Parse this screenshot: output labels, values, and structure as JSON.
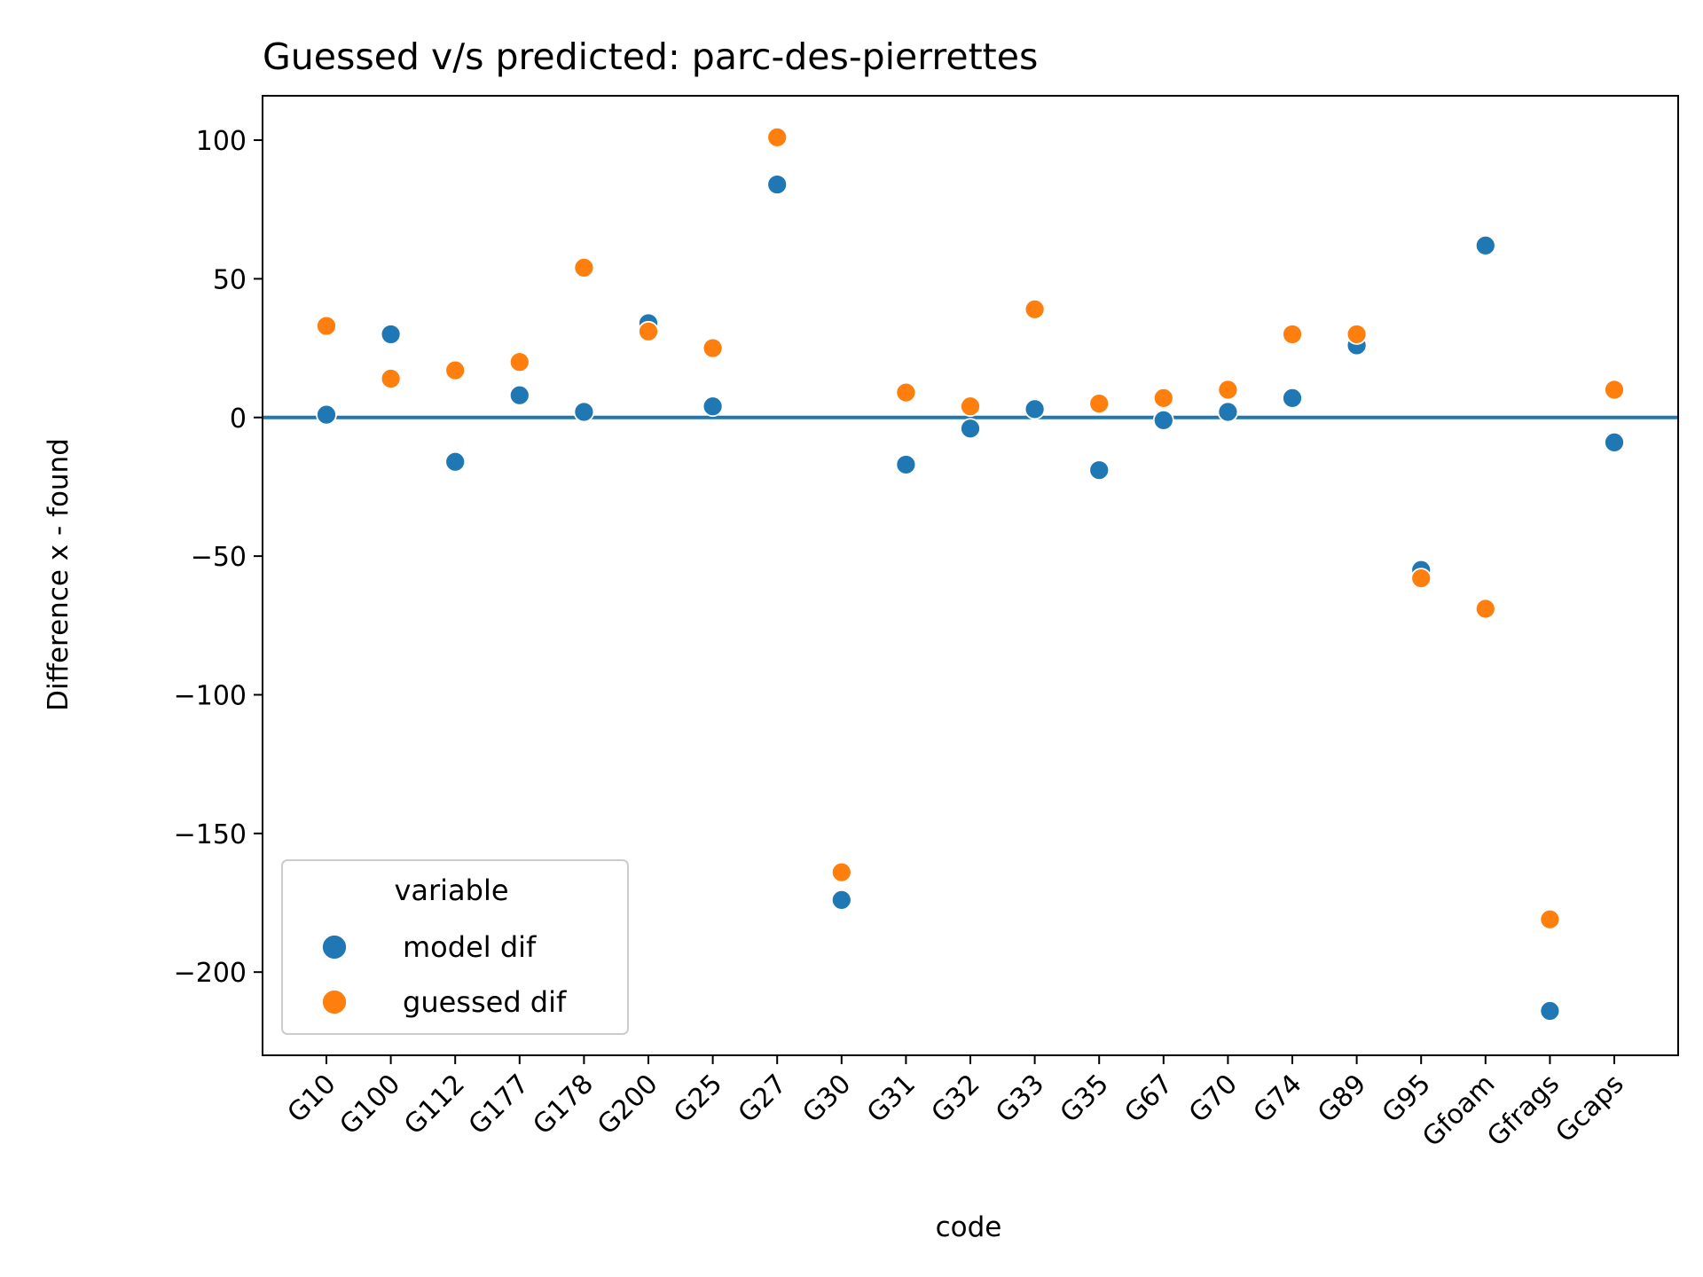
{
  "chart_data": {
    "type": "scatter",
    "title": "Guessed v/s predicted: parc-des-pierrettes",
    "xlabel": "code",
    "ylabel": "Difference x - found",
    "categories": [
      "G10",
      "G100",
      "G112",
      "G177",
      "G178",
      "G200",
      "G25",
      "G27",
      "G30",
      "G31",
      "G32",
      "G33",
      "G35",
      "G67",
      "G70",
      "G74",
      "G89",
      "G95",
      "Gfoam",
      "Gfrags",
      "Gcaps"
    ],
    "ylim": [
      -230,
      116
    ],
    "yticks": [
      100,
      50,
      0,
      -50,
      -100,
      -150,
      -200
    ],
    "ytick_labels": [
      "100",
      "50",
      "0",
      "−50",
      "−100",
      "−150",
      "−200"
    ],
    "reference_line": {
      "y": 0,
      "color": "#1f77b4"
    },
    "grid": false,
    "legend": {
      "title": "variable",
      "position": "lower-left",
      "entries": [
        {
          "label": "model dif",
          "color": "#1f77b4"
        },
        {
          "label": "guessed dif",
          "color": "#ff7f0e"
        }
      ]
    },
    "series": [
      {
        "name": "model dif",
        "color": "#1f77b4",
        "values": [
          1,
          30,
          -16,
          8,
          2,
          34,
          4,
          84,
          -174,
          -17,
          -4,
          3,
          -19,
          -1,
          2,
          7,
          26,
          -55,
          62,
          -214,
          -9
        ]
      },
      {
        "name": "guessed dif",
        "color": "#ff7f0e",
        "values": [
          33,
          14,
          17,
          20,
          54,
          31,
          25,
          101,
          -164,
          9,
          4,
          39,
          5,
          7,
          10,
          30,
          30,
          -58,
          -69,
          -181,
          10
        ]
      }
    ]
  }
}
